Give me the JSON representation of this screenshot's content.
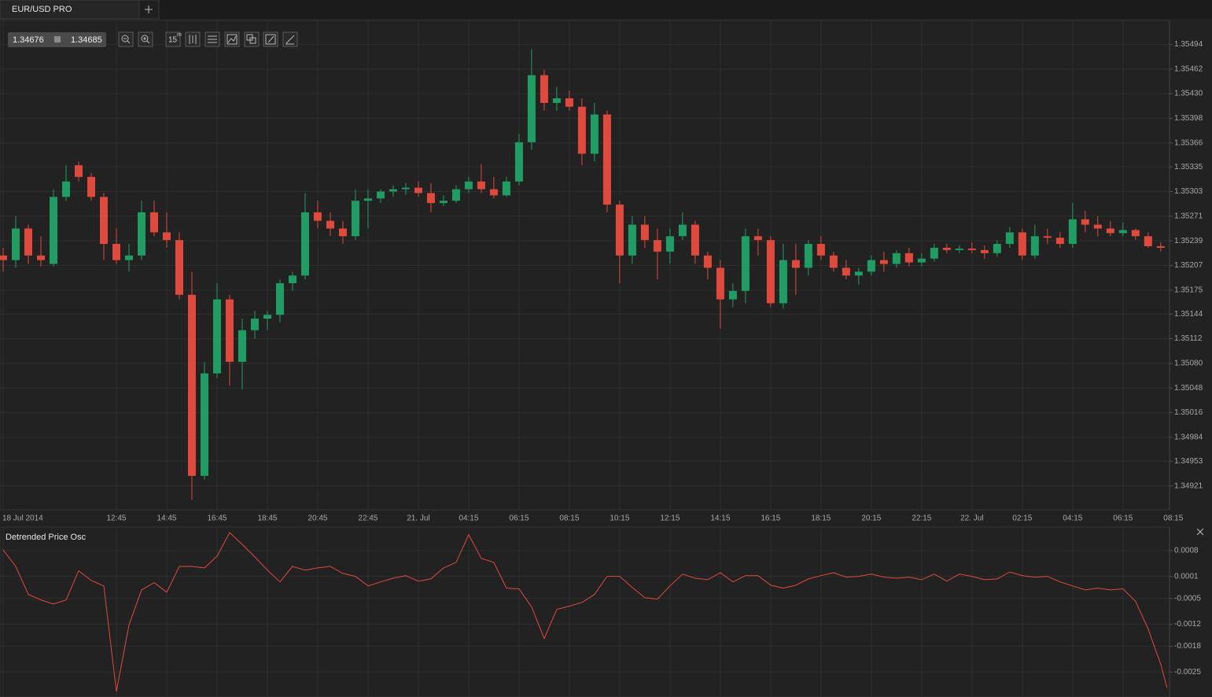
{
  "ui": {
    "tab": "EUR/USD PRO",
    "bid": "1.34676",
    "ask": "1.34685",
    "timeframe": "15",
    "timeframe_unit": "m"
  },
  "chart_data": [
    {
      "type": "candlestick",
      "up_color": "#1f9d62",
      "down_color": "#e04a3c",
      "grid": true,
      "x": [
        0,
        2,
        4,
        6,
        8,
        10,
        12,
        14,
        16,
        18,
        20,
        22,
        24,
        26,
        28,
        30,
        32,
        34,
        36,
        38,
        40,
        42,
        44,
        46,
        48,
        50,
        52,
        54,
        56,
        58,
        60,
        62,
        64,
        66,
        68,
        70,
        72,
        74,
        76,
        78,
        80,
        82,
        84,
        86,
        88,
        90,
        92,
        94,
        96,
        98,
        100,
        102,
        104,
        106,
        108,
        110,
        112,
        114,
        116,
        118,
        120,
        122,
        124,
        126,
        128,
        130,
        132,
        134,
        136,
        138,
        140,
        142,
        144,
        146,
        148,
        150,
        152,
        154,
        156,
        158,
        160,
        162,
        164,
        166,
        168,
        170,
        172,
        174,
        176,
        178,
        180,
        182,
        184
      ],
      "open": [
        1.3522,
        1.35214,
        1.35255,
        1.3522,
        1.35209,
        1.35296,
        1.35337,
        1.35322,
        1.35296,
        1.35235,
        1.35214,
        1.3522,
        1.35276,
        1.3525,
        1.3524,
        1.35169,
        1.34934,
        1.35067,
        1.35163,
        1.35082,
        1.35123,
        1.35138,
        1.35143,
        1.35184,
        1.35194,
        1.35276,
        1.35265,
        1.35255,
        1.35245,
        1.35291,
        1.35294,
        1.35303,
        1.35306,
        1.35308,
        1.35301,
        1.35288,
        1.35291,
        1.35306,
        1.35316,
        1.35306,
        1.35298,
        1.35316,
        1.35367,
        1.35454,
        1.35418,
        1.35424,
        1.35413,
        1.35352,
        1.35403,
        1.35286,
        1.3522,
        1.3526,
        1.3524,
        1.35225,
        1.35245,
        1.3526,
        1.3522,
        1.35204,
        1.35163,
        1.35174,
        1.35245,
        1.3524,
        1.35158,
        1.35214,
        1.35204,
        1.35235,
        1.3522,
        1.35204,
        1.35194,
        1.35199,
        1.35214,
        1.35209,
        1.35223,
        1.35211,
        1.35216,
        1.3523,
        1.35227,
        1.35229,
        1.35227,
        1.35223,
        1.35235,
        1.3525,
        1.3522,
        1.35245,
        1.35243,
        1.35235,
        1.35267,
        1.3526,
        1.35255,
        1.35249,
        1.35253,
        1.35245,
        1.35232
      ],
      "high": [
        1.3523,
        1.35271,
        1.3526,
        1.35245,
        1.35306,
        1.35337,
        1.35342,
        1.35327,
        1.35301,
        1.35255,
        1.35235,
        1.35291,
        1.35291,
        1.35276,
        1.3525,
        1.35199,
        1.35082,
        1.35184,
        1.35169,
        1.35138,
        1.35148,
        1.35148,
        1.35189,
        1.35199,
        1.35301,
        1.35291,
        1.35276,
        1.35265,
        1.35306,
        1.35306,
        1.35306,
        1.35311,
        1.35314,
        1.35316,
        1.35314,
        1.35298,
        1.35311,
        1.35322,
        1.35339,
        1.35322,
        1.35322,
        1.35378,
        1.35488,
        1.35461,
        1.35439,
        1.35434,
        1.35424,
        1.35418,
        1.35408,
        1.35291,
        1.35271,
        1.35271,
        1.35255,
        1.35255,
        1.35276,
        1.35265,
        1.35225,
        1.35214,
        1.35184,
        1.35255,
        1.35255,
        1.35245,
        1.35235,
        1.35235,
        1.3524,
        1.35245,
        1.35225,
        1.35214,
        1.35204,
        1.3522,
        1.35225,
        1.35227,
        1.3523,
        1.35223,
        1.35235,
        1.35235,
        1.35233,
        1.35237,
        1.35233,
        1.3524,
        1.35257,
        1.35255,
        1.3526,
        1.35255,
        1.3525,
        1.35288,
        1.35278,
        1.35271,
        1.35265,
        1.35263,
        1.35255,
        1.3525,
        1.35237
      ],
      "low": [
        1.35199,
        1.35204,
        1.35209,
        1.35206,
        1.35206,
        1.35291,
        1.35316,
        1.35291,
        1.35214,
        1.35209,
        1.35199,
        1.35214,
        1.35245,
        1.3523,
        1.35163,
        1.34903,
        1.34929,
        1.35061,
        1.35051,
        1.35046,
        1.35112,
        1.35123,
        1.35133,
        1.35174,
        1.35189,
        1.35255,
        1.35245,
        1.35235,
        1.3524,
        1.35255,
        1.35288,
        1.35296,
        1.35299,
        1.35296,
        1.35276,
        1.35284,
        1.35288,
        1.35301,
        1.35301,
        1.35294,
        1.35296,
        1.35311,
        1.35357,
        1.35408,
        1.35408,
        1.35408,
        1.35337,
        1.35342,
        1.35276,
        1.35184,
        1.35209,
        1.3523,
        1.35189,
        1.35209,
        1.3524,
        1.35209,
        1.35189,
        1.35125,
        1.35153,
        1.35158,
        1.3522,
        1.35153,
        1.35151,
        1.35169,
        1.35194,
        1.35214,
        1.35199,
        1.35189,
        1.35182,
        1.35194,
        1.35199,
        1.35204,
        1.35206,
        1.35206,
        1.35212,
        1.35223,
        1.35223,
        1.35223,
        1.35216,
        1.35218,
        1.3523,
        1.35214,
        1.35216,
        1.35235,
        1.3523,
        1.3523,
        1.3525,
        1.35245,
        1.35245,
        1.35245,
        1.3524,
        1.3523,
        1.35225
      ],
      "close": [
        1.35214,
        1.35255,
        1.3522,
        1.35214,
        1.35296,
        1.35316,
        1.35322,
        1.35296,
        1.35235,
        1.35214,
        1.3522,
        1.35276,
        1.3525,
        1.3524,
        1.35169,
        1.34934,
        1.35067,
        1.35163,
        1.35082,
        1.35123,
        1.35138,
        1.35143,
        1.35184,
        1.35194,
        1.35276,
        1.35265,
        1.35255,
        1.35245,
        1.35291,
        1.35294,
        1.35303,
        1.35306,
        1.35308,
        1.35301,
        1.35288,
        1.35291,
        1.35306,
        1.35316,
        1.35306,
        1.35298,
        1.35316,
        1.35367,
        1.35454,
        1.35418,
        1.35424,
        1.35413,
        1.35352,
        1.35403,
        1.35286,
        1.3522,
        1.3526,
        1.3524,
        1.35225,
        1.35245,
        1.3526,
        1.3522,
        1.35204,
        1.35163,
        1.35174,
        1.35245,
        1.3524,
        1.35158,
        1.35214,
        1.35204,
        1.35235,
        1.3522,
        1.35204,
        1.35194,
        1.35199,
        1.35214,
        1.35209,
        1.35223,
        1.35211,
        1.35216,
        1.3523,
        1.35227,
        1.35229,
        1.35227,
        1.35223,
        1.35235,
        1.3525,
        1.3522,
        1.35245,
        1.35243,
        1.35235,
        1.35267,
        1.3526,
        1.35255,
        1.35249,
        1.35253,
        1.35245,
        1.35232,
        1.3523
      ],
      "xlim": [
        -0.5,
        185.4
      ],
      "ylim": [
        1.3489,
        1.35525
      ],
      "yticks": [
        1.35494,
        1.35462,
        {
          "value": 1.3543,
          "label": "1.35430"
        },
        1.35398,
        1.35366,
        1.35335,
        1.35303,
        1.35271,
        1.35239,
        1.35207,
        1.35175,
        1.35144,
        1.35112,
        {
          "value": 1.3508,
          "label": "1.35080"
        },
        1.35048,
        1.35016,
        1.34984,
        1.34953,
        1.34921
      ],
      "xticks": [
        {
          "value": 0,
          "label": "18 Jul 2014"
        },
        {
          "value": 18,
          "label": "12:45"
        },
        {
          "value": 26,
          "label": "14:45"
        },
        {
          "value": 34,
          "label": "16:45"
        },
        {
          "value": 42,
          "label": "18:45"
        },
        {
          "value": 50,
          "label": "20:45"
        },
        {
          "value": 58,
          "label": "22:45"
        },
        {
          "value": 66,
          "label": "21. Jul"
        },
        {
          "value": 74,
          "label": "04:15"
        },
        {
          "value": 82,
          "label": "06:15"
        },
        {
          "value": 90,
          "label": "08:15"
        },
        {
          "value": 98,
          "label": "10:15"
        },
        {
          "value": 106,
          "label": "12:15"
        },
        {
          "value": 114,
          "label": "14:15"
        },
        {
          "value": 122,
          "label": "16:15"
        },
        {
          "value": 130,
          "label": "18:15"
        },
        {
          "value": 138,
          "label": "20:15"
        },
        {
          "value": 146,
          "label": "22:15"
        },
        {
          "value": 154,
          "label": "22. Jul"
        },
        {
          "value": 162,
          "label": "02:15"
        },
        {
          "value": 170,
          "label": "04:15"
        },
        {
          "value": 178,
          "label": "06:15"
        },
        {
          "value": 186,
          "label": "08:15"
        }
      ]
    },
    {
      "type": "line",
      "title": "Detrended Price Osc",
      "color": "#e04a3c",
      "grid": true,
      "x": [
        0,
        2,
        4,
        6,
        8,
        10,
        12,
        14,
        16,
        18,
        20,
        22,
        24,
        26,
        28,
        30,
        32,
        34,
        36,
        38,
        40,
        42,
        44,
        46,
        48,
        50,
        52,
        54,
        56,
        58,
        60,
        62,
        64,
        66,
        68,
        70,
        72,
        74,
        76,
        78,
        80,
        82,
        84,
        86,
        88,
        90,
        92,
        94,
        96,
        98,
        100,
        102,
        104,
        106,
        108,
        110,
        112,
        114,
        116,
        118,
        120,
        122,
        124,
        126,
        128,
        130,
        132,
        134,
        136,
        138,
        140,
        142,
        144,
        146,
        148,
        150,
        152,
        154,
        156,
        158,
        160,
        162,
        164,
        166,
        168,
        170,
        172,
        174,
        176,
        178,
        180,
        182,
        184,
        185
      ],
      "values": [
        0.00082,
        0.00037,
        -0.00039,
        -0.00054,
        -0.00065,
        -0.00054,
        0.00025,
        -1e-05,
        -0.00016,
        -0.00303,
        -0.00122,
        -0.00027,
        -7e-05,
        -0.00033,
        0.00037,
        0.00037,
        0.00033,
        0.00065,
        0.00129,
        0.00097,
        0.00063,
        0.00027,
        -5e-05,
        0.00037,
        0.00027,
        0.00033,
        0.00037,
        0.00018,
        0.0001,
        -0.00016,
        -5e-05,
        5e-05,
        0.00012,
        -3e-05,
        3e-05,
        0.00033,
        0.00048,
        0.00123,
        0.00059,
        0.00048,
        -0.00022,
        -0.00024,
        -0.00073,
        -0.00159,
        -0.0008,
        -0.00071,
        -0.00061,
        -0.00039,
        0.0001,
        0.0001,
        -0.0002,
        -0.00048,
        -0.00052,
        -0.00016,
        0.00016,
        5e-05,
        1e-05,
        0.0002,
        -5e-05,
        0.00012,
        0.00012,
        -0.00014,
        -0.00022,
        -0.00014,
        3e-05,
        0.00012,
        0.0002,
        8e-05,
        0.0001,
        0.00016,
        8e-05,
        5e-05,
        8e-05,
        1e-05,
        0.00016,
        -3e-05,
        0.00016,
        0.0001,
        1e-05,
        3e-05,
        0.00022,
        0.00012,
        8e-05,
        0.0001,
        -5e-05,
        -0.00016,
        -0.00027,
        -0.00022,
        -0.00027,
        -0.00024,
        -0.00058,
        -0.00133,
        -0.00229,
        -0.00293
      ],
      "xlim": [
        -0.5,
        185.4
      ],
      "ylim": [
        -0.00318,
        0.00144
      ],
      "yticks": [
        0.0008,
        0.0001,
        -0.0005,
        -0.0012,
        -0.0018,
        -0.0025
      ]
    }
  ]
}
